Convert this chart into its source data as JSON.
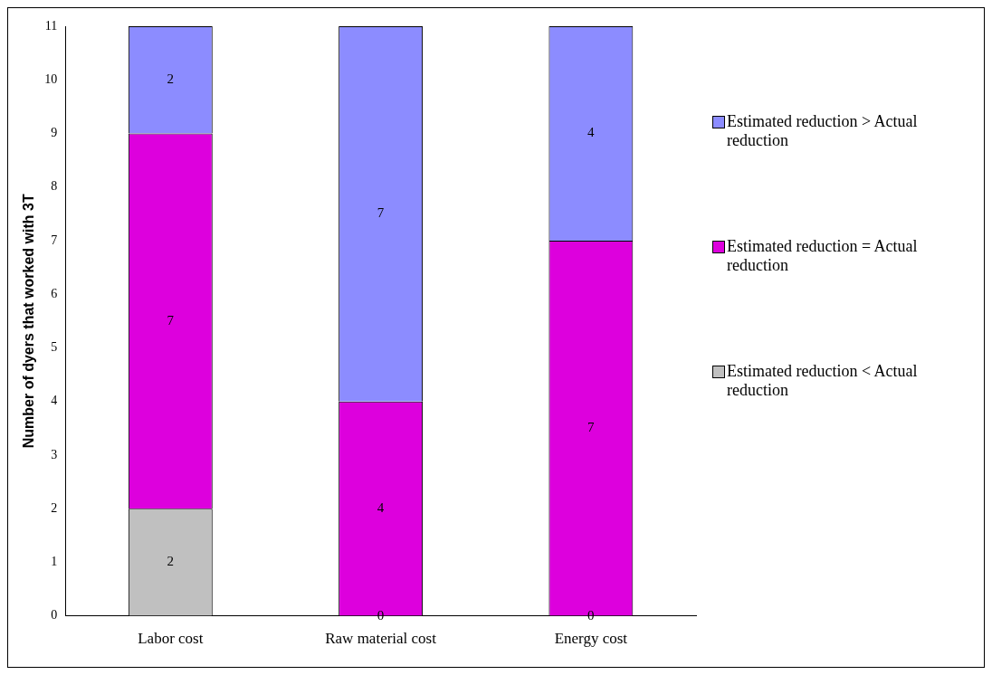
{
  "chart_data": {
    "type": "bar",
    "ylabel": "Number of dyers that worked with 3T",
    "categories": [
      "Labor cost",
      "Raw material cost",
      "Energy cost"
    ],
    "stacked": true,
    "series": [
      {
        "name": "Estimated reduction < Actual reduction",
        "color": "#c0c0c0",
        "values": [
          2,
          0,
          0
        ],
        "value_labels": [
          "2",
          null,
          null
        ]
      },
      {
        "name": "Estimated reduction = Actual reduction",
        "color": "#dd00dd",
        "values": [
          7,
          4,
          7
        ]
      },
      {
        "name": "Estimated reduction > Actual reduction",
        "color": "#8c8cff",
        "values": [
          2,
          7,
          4
        ]
      }
    ],
    "ylim": [
      0,
      11
    ],
    "yticks": [
      0,
      1,
      2,
      3,
      4,
      5,
      6,
      7,
      8,
      9,
      10,
      11
    ],
    "grid": false,
    "legend": "right",
    "data_labels": true,
    "annotations": [
      {
        "text": "0",
        "x": "Raw material cost",
        "y": 0
      },
      {
        "text": "0",
        "x": "Energy cost",
        "y": 0
      }
    ]
  }
}
